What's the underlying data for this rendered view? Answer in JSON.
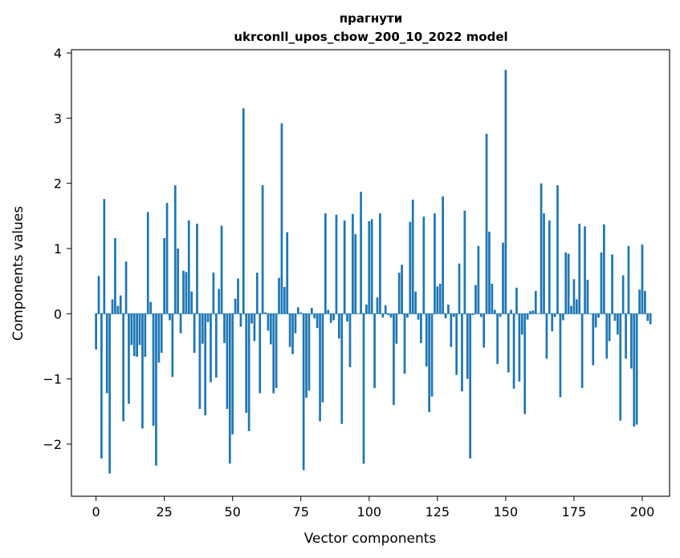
{
  "chart_data": {
    "type": "bar",
    "title_line1": "прагнути",
    "title_line2": "ukrconll_upos_cbow_200_10_2022 model",
    "xlabel": "Vector components",
    "ylabel": "Components values",
    "xlim": [
      -9,
      210
    ],
    "ylim": [
      -2.8,
      4.05
    ],
    "xticks": [
      0,
      25,
      50,
      75,
      100,
      125,
      150,
      175,
      200
    ],
    "yticks": [
      -2,
      -1,
      0,
      1,
      2,
      3,
      4
    ],
    "ytick_labels": [
      "−2",
      "−1",
      "0",
      "1",
      "2",
      "3",
      "4"
    ],
    "bar_color": "#1f77b4",
    "grid": false,
    "values": [
      -0.55,
      0.58,
      -2.22,
      1.76,
      -1.22,
      -2.45,
      0.22,
      1.16,
      0.12,
      0.28,
      -1.65,
      0.8,
      -1.38,
      -0.48,
      -0.65,
      -0.66,
      -0.48,
      -1.76,
      -0.66,
      1.56,
      0.18,
      -1.72,
      -2.33,
      -0.75,
      -0.6,
      1.16,
      1.7,
      -0.1,
      -0.97,
      1.97,
      1.0,
      -0.3,
      0.66,
      0.64,
      1.43,
      0.34,
      -0.6,
      1.38,
      -1.46,
      -0.46,
      -1.56,
      -0.13,
      -1.05,
      0.63,
      -0.98,
      0.38,
      1.35,
      -0.45,
      -1.46,
      -2.3,
      -1.85,
      0.23,
      0.54,
      -0.2,
      3.15,
      -1.52,
      -1.8,
      -0.15,
      -0.42,
      0.63,
      -1.22,
      1.97,
      0.02,
      -0.26,
      -0.47,
      -1.22,
      -1.14,
      0.55,
      2.92,
      0.41,
      1.25,
      -0.51,
      -0.62,
      -0.3,
      0.1,
      0.02,
      -2.4,
      -1.29,
      -1.18,
      0.09,
      -0.07,
      -0.22,
      -1.65,
      -1.36,
      1.54,
      0.06,
      -0.14,
      -0.1,
      1.52,
      -0.38,
      -1.69,
      1.43,
      -0.12,
      -0.82,
      1.53,
      1.22,
      0.0,
      1.87,
      -2.3,
      0.14,
      1.42,
      1.45,
      -1.14,
      0.25,
      1.54,
      -0.06,
      0.13,
      -0.02,
      -0.06,
      -1.4,
      -0.46,
      0.63,
      0.75,
      -0.92,
      -0.06,
      1.41,
      1.75,
      0.34,
      -0.09,
      -0.45,
      1.49,
      -0.81,
      -1.51,
      -1.27,
      1.54,
      0.42,
      0.46,
      1.8,
      -0.07,
      0.14,
      -0.51,
      -0.05,
      -0.94,
      0.77,
      -1.19,
      1.58,
      -1.0,
      -2.22,
      -0.02,
      0.44,
      1.04,
      -0.05,
      -0.52,
      2.76,
      1.26,
      0.46,
      0.06,
      -0.77,
      -0.05,
      1.09,
      3.74,
      -0.9,
      0.06,
      -1.15,
      0.4,
      -1.04,
      -0.32,
      -1.54,
      -0.09,
      0.04,
      0.05,
      0.35,
      0.0,
      2.0,
      1.54,
      -0.69,
      1.43,
      -0.27,
      -0.05,
      1.97,
      -1.28,
      -0.1,
      0.94,
      0.92,
      0.12,
      0.53,
      0.22,
      1.38,
      -1.14,
      1.34,
      0.52,
      0.0,
      -0.79,
      -0.21,
      -0.06,
      0.94,
      1.37,
      -0.69,
      -0.42,
      0.91,
      -0.11,
      -0.32,
      -1.64,
      0.59,
      -0.69,
      1.04,
      -0.84,
      -1.73,
      -1.7,
      0.37,
      1.06,
      0.35,
      -0.11,
      -0.16
    ]
  }
}
